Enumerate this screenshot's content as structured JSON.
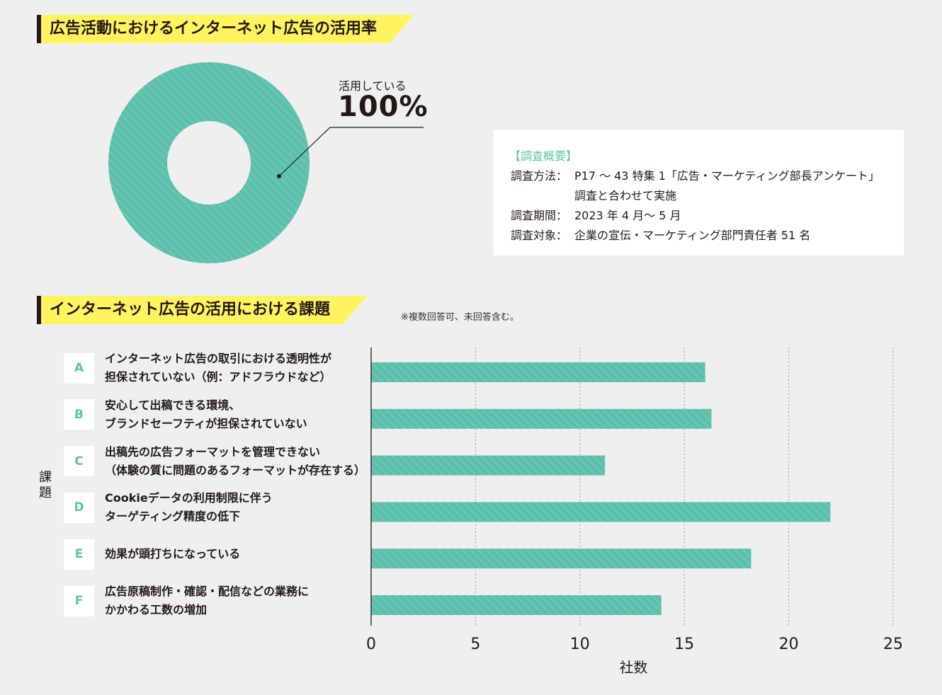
{
  "section1": {
    "title": "広告活動におけるインターネット広告の活用率"
  },
  "section2": {
    "title": "インターネット広告の活用における課題",
    "note": "※複数回答可、未回答含む。"
  },
  "survey": {
    "heading": "【調査概要】",
    "rows": [
      {
        "key": "調査方法：",
        "value": "P17 ～ 43 特集 1「広告・マーケティング部長アンケート」",
        "cont": "調査と合わせて実施"
      },
      {
        "key": "調査期間：",
        "value": "2023 年 4 月～ 5 月"
      },
      {
        "key": "調査対象：",
        "value": "企業の宣伝・マーケティング部門責任者 51 名"
      }
    ]
  },
  "colors": {
    "teal": "#5cc0ac",
    "yellow": "#fff35f",
    "ink": "#231815"
  },
  "chart_data": [
    {
      "type": "pie",
      "variant": "donut",
      "slices": [
        {
          "label": "活用している",
          "value": 100
        }
      ],
      "value_label": "100%"
    },
    {
      "type": "bar",
      "orientation": "horizontal",
      "ylabel": "課題",
      "xlabel": "社数",
      "xlim": [
        0,
        25
      ],
      "xticks": [
        "0",
        "5",
        "10",
        "15",
        "20",
        "25"
      ],
      "grid": "vertical-dotted",
      "categories": [
        {
          "letter": "A",
          "lines": [
            "インターネット広告の取引における透明性が",
            "担保されていない（例：アドフラウドなど）"
          ]
        },
        {
          "letter": "B",
          "lines": [
            "安心して出稿できる環境、",
            "ブランドセーフティが担保されていない"
          ]
        },
        {
          "letter": "C",
          "lines": [
            "出稿先の広告フォーマットを管理できない",
            "（体験の質に問題のあるフォーマットが存在する）"
          ]
        },
        {
          "letter": "D",
          "lines": [
            "Cookieデータの利用制限に伴う",
            "ターゲティング精度の低下"
          ]
        },
        {
          "letter": "E",
          "lines": [
            "効果が頭打ちになっている"
          ]
        },
        {
          "letter": "F",
          "lines": [
            "広告原稿制作・確認・配信などの業務に",
            "かかわる工数の増加"
          ]
        }
      ],
      "values": [
        16,
        16.3,
        11.2,
        22,
        18.2,
        13.9
      ]
    }
  ]
}
